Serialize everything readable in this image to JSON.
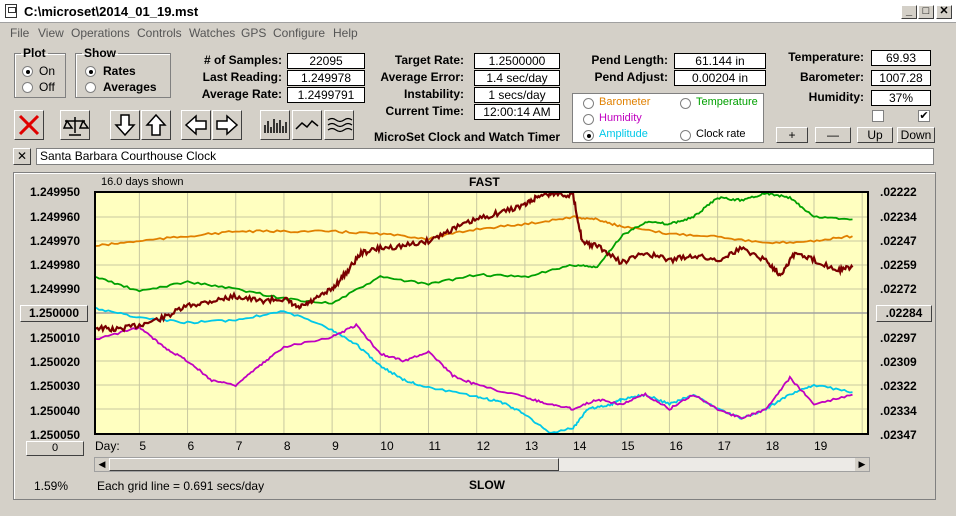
{
  "window": {
    "title": "C:\\microset\\2014_01_19.mst"
  },
  "menu": [
    "File",
    "View",
    "Operations",
    "Controls",
    "Watches",
    "GPS",
    "Configure",
    "Help"
  ],
  "plot": {
    "legend": "Plot",
    "on": "On",
    "off": "Off",
    "selected": "On"
  },
  "show": {
    "legend": "Show",
    "rates": "Rates",
    "averages": "Averages",
    "selected": "Rates"
  },
  "stats": {
    "samples_label": "# of Samples:",
    "samples": "22095",
    "last_label": "Last Reading:",
    "last": "1.249978",
    "avg_label": "Average Rate:",
    "avg": "1.2499791",
    "target_label": "Target Rate:",
    "target": "1.2500000",
    "avgerr_label": "Average Error:",
    "avgerr": "1.4 sec/day",
    "instab_label": "Instability:",
    "instab": "1 secs/day",
    "time_label": "Current Time:",
    "time": "12:00:14 AM",
    "pendlen_label": "Pend Length:",
    "pendlen": "61.144 in",
    "pendadj_label": "Pend Adjust:",
    "pendadj": "0.00204 in",
    "temp_label": "Temperature:",
    "temp": "69.93",
    "baro_label": "Barometer:",
    "baro": "1007.28",
    "hum_label": "Humidity:",
    "hum": "37%"
  },
  "app_caption": "MicroSet Clock and Watch Timer",
  "legend_items": [
    {
      "label": "Barometer",
      "color": "#e08000",
      "checked": false
    },
    {
      "label": "Temperature",
      "color": "#00a000",
      "checked": false
    },
    {
      "label": "Humidity",
      "color": "#c000c0",
      "checked": false
    },
    {
      "label": "Amplitude",
      "color": "#00c8e8",
      "checked": true
    },
    {
      "label": "Clock rate",
      "color": "#000000",
      "checked": false
    }
  ],
  "scale_buttons": {
    "plus": "+",
    "minus": "—",
    "up": "Up",
    "down": "Down"
  },
  "description": "Santa Barbara Courthouse Clock",
  "graph": {
    "days_shown": "16.0 days shown",
    "fast": "FAST",
    "slow": "SLOW",
    "center_value": "1.250000",
    "center_right": ".02284",
    "left_axis": [
      "1.249950",
      "1.249960",
      "1.249970",
      "1.249980",
      "1.249990",
      "1.250010",
      "1.250020",
      "1.250030",
      "1.250040",
      "1.250050"
    ],
    "right_axis": [
      ".02222",
      ".02234",
      ".02247",
      ".02259",
      ".02272",
      ".02297",
      ".02309",
      ".02322",
      ".02334",
      ".02347"
    ],
    "day_label": "Day:",
    "days": [
      "5",
      "6",
      "7",
      "8",
      "9",
      "10",
      "11",
      "12",
      "13",
      "14",
      "15",
      "16",
      "17",
      "18",
      "19"
    ],
    "scroll_value": "0",
    "percent": "1.59%",
    "grid_note": "Each grid line = 0.691 secs/day"
  },
  "chart_data": {
    "type": "line",
    "ylim": [
      1.25005,
      1.24995
    ],
    "xlim": [
      4.1,
      20.1
    ],
    "series": [
      {
        "name": "Clock rate",
        "color": "#7a0000",
        "x": [
          4.1,
          4.5,
          5,
          5.5,
          6,
          6.5,
          7,
          7.5,
          8,
          8.3,
          8.6,
          9,
          9.3,
          9.6,
          10,
          10.5,
          11,
          11.5,
          12,
          12.5,
          13,
          13.3,
          13.6,
          14,
          14.2,
          14.5,
          15,
          15.5,
          16,
          16.5,
          17,
          17.5,
          18,
          18.3,
          18.6,
          19,
          19.5,
          19.8
        ],
        "y": [
          1.250006,
          1.250007,
          1.250005,
          1.250002,
          1.249997,
          1.249995,
          1.249993,
          1.249995,
          1.249994,
          1.249998,
          1.249995,
          1.24999,
          1.249983,
          1.249975,
          1.249973,
          1.249972,
          1.24997,
          1.249965,
          1.249961,
          1.249958,
          1.249955,
          1.249951,
          1.24995,
          1.249951,
          1.249971,
          1.249972,
          1.249979,
          1.249975,
          1.249978,
          1.249976,
          1.249978,
          1.249973,
          1.249978,
          1.249984,
          1.249975,
          1.249978,
          1.249982,
          1.249981
        ]
      },
      {
        "name": "Barometer",
        "color": "#e08000",
        "x": [
          4.1,
          5,
          6,
          7,
          8,
          9,
          10,
          11,
          12,
          13,
          14,
          14.5,
          15,
          16,
          17,
          18,
          19,
          19.8
        ],
        "y": [
          1.249972,
          1.24997,
          1.249968,
          1.249966,
          1.249966,
          1.249966,
          1.249967,
          1.249969,
          1.249965,
          1.249963,
          1.24996,
          1.249961,
          1.249964,
          1.249967,
          1.249968,
          1.249971,
          1.24997,
          1.249968
        ]
      },
      {
        "name": "Temperature",
        "color": "#00a000",
        "x": [
          4.1,
          5,
          6,
          7,
          8,
          9,
          10,
          11,
          12,
          13,
          14,
          14.5,
          15,
          15.5,
          16,
          16.5,
          17,
          17.5,
          18,
          18.5,
          19,
          19.8
        ],
        "y": [
          1.249985,
          1.249991,
          1.249987,
          1.24999,
          1.249994,
          1.249996,
          1.249985,
          1.249988,
          1.249984,
          1.249985,
          1.24998,
          1.249981,
          1.249968,
          1.249962,
          1.249963,
          1.24996,
          1.249952,
          1.249953,
          1.24995,
          1.249952,
          1.24996,
          1.249961
        ]
      },
      {
        "name": "Humidity",
        "color": "#c000c0",
        "x": [
          4.1,
          5,
          5.5,
          6,
          6.5,
          7,
          7.5,
          8,
          9,
          9.5,
          10,
          10.5,
          11,
          11.5,
          12,
          13,
          13.5,
          14,
          14.5,
          15,
          15.5,
          16,
          16.5,
          17,
          17.5,
          18,
          18.5,
          19,
          19.8
        ],
        "y": [
          1.250011,
          1.250006,
          1.250014,
          1.25002,
          1.250028,
          1.25003,
          1.250022,
          1.250014,
          1.25001,
          1.250005,
          1.250017,
          1.25002,
          1.250016,
          1.250026,
          1.25003,
          1.250035,
          1.250038,
          1.25004,
          1.250036,
          1.250038,
          1.250034,
          1.25004,
          1.250034,
          1.25004,
          1.250044,
          1.25004,
          1.250027,
          1.250038,
          1.250034
        ]
      },
      {
        "name": "Amplitude",
        "color": "#00c8e8",
        "x": [
          4.1,
          5,
          6,
          7,
          8,
          9,
          9.5,
          10,
          10.5,
          11,
          12,
          12.5,
          13,
          13.5,
          14,
          14.3,
          14.8,
          15,
          15.5,
          16,
          16.5,
          17,
          17.5,
          18,
          18.5,
          19,
          19.8
        ],
        "y": [
          1.249998,
          1.250002,
          1.250004,
          1.250003,
          1.249999,
          1.250007,
          1.250013,
          1.250022,
          1.250028,
          1.250031,
          1.250035,
          1.250037,
          1.250042,
          1.25005,
          1.250048,
          1.25004,
          1.250038,
          1.250036,
          1.250034,
          1.250038,
          1.250034,
          1.25004,
          1.250044,
          1.25004,
          1.250034,
          1.25003,
          1.250033
        ]
      }
    ]
  }
}
